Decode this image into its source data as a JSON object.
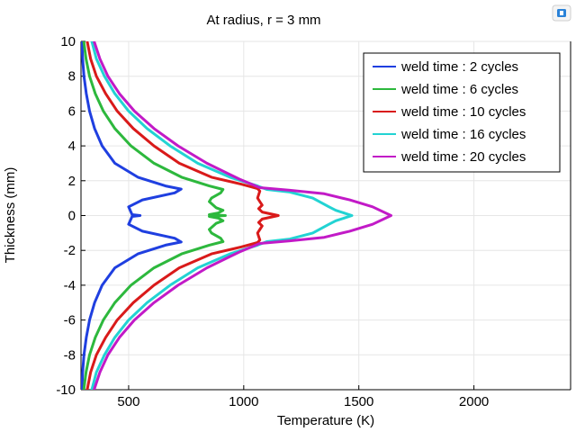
{
  "chart_data": {
    "type": "line",
    "title": "At radius, r = 3 mm",
    "xlabel": "Temperature (K)",
    "ylabel": "Thickness (mm)",
    "xlim": [
      293,
      2420
    ],
    "ylim": [
      -10,
      10
    ],
    "xticks": [
      500,
      1000,
      1500,
      2000
    ],
    "yticks": [
      -10,
      -8,
      -6,
      -4,
      -2,
      0,
      2,
      4,
      6,
      8,
      10
    ],
    "grid": true,
    "legend_position": "top-right",
    "series": [
      {
        "name": "weld time : 2 cycles",
        "color": "#1f3fe0",
        "points": [
          [
            297,
            10
          ],
          [
            300,
            9
          ],
          [
            306,
            8
          ],
          [
            316,
            7
          ],
          [
            330,
            6
          ],
          [
            352,
            5
          ],
          [
            385,
            4
          ],
          [
            440,
            3
          ],
          [
            540,
            2.2
          ],
          [
            660,
            1.7
          ],
          [
            728,
            1.52
          ],
          [
            700,
            1.3
          ],
          [
            560,
            0.9
          ],
          [
            500,
            0.5
          ],
          [
            515,
            0.05
          ],
          [
            550,
            0
          ],
          [
            515,
            -0.05
          ],
          [
            500,
            -0.5
          ],
          [
            560,
            -0.9
          ],
          [
            700,
            -1.3
          ],
          [
            728,
            -1.52
          ],
          [
            660,
            -1.7
          ],
          [
            540,
            -2.2
          ],
          [
            440,
            -3
          ],
          [
            385,
            -4
          ],
          [
            352,
            -5
          ],
          [
            330,
            -6
          ],
          [
            316,
            -7
          ],
          [
            306,
            -8
          ],
          [
            300,
            -9
          ],
          [
            297,
            -10
          ]
        ]
      },
      {
        "name": "weld time : 6 cycles",
        "color": "#2db83d",
        "points": [
          [
            305,
            10
          ],
          [
            315,
            9
          ],
          [
            330,
            8
          ],
          [
            355,
            7
          ],
          [
            390,
            6
          ],
          [
            440,
            5
          ],
          [
            510,
            4
          ],
          [
            610,
            3
          ],
          [
            730,
            2.2
          ],
          [
            850,
            1.7
          ],
          [
            910,
            1.5
          ],
          [
            900,
            1.3
          ],
          [
            860,
            1.0
          ],
          [
            850,
            0.8
          ],
          [
            880,
            0.45
          ],
          [
            910,
            0.3
          ],
          [
            890,
            0.15
          ],
          [
            850,
            0.05
          ],
          [
            920,
            0
          ],
          [
            850,
            -0.05
          ],
          [
            890,
            -0.15
          ],
          [
            910,
            -0.3
          ],
          [
            880,
            -0.45
          ],
          [
            850,
            -0.8
          ],
          [
            860,
            -1.0
          ],
          [
            900,
            -1.3
          ],
          [
            910,
            -1.5
          ],
          [
            850,
            -1.7
          ],
          [
            730,
            -2.2
          ],
          [
            610,
            -3
          ],
          [
            510,
            -4
          ],
          [
            440,
            -5
          ],
          [
            390,
            -6
          ],
          [
            355,
            -7
          ],
          [
            330,
            -8
          ],
          [
            315,
            -9
          ],
          [
            305,
            -10
          ]
        ]
      },
      {
        "name": "weld time : 10 cycles",
        "color": "#d91a1a",
        "points": [
          [
            320,
            10
          ],
          [
            335,
            9
          ],
          [
            360,
            8
          ],
          [
            400,
            7
          ],
          [
            450,
            6
          ],
          [
            520,
            5
          ],
          [
            610,
            4
          ],
          [
            720,
            3
          ],
          [
            860,
            2.2
          ],
          [
            990,
            1.8
          ],
          [
            1060,
            1.55
          ],
          [
            1070,
            1.4
          ],
          [
            1065,
            1.2
          ],
          [
            1060,
            1.0
          ],
          [
            1070,
            0.8
          ],
          [
            1080,
            0.6
          ],
          [
            1065,
            0.4
          ],
          [
            1080,
            0.2
          ],
          [
            1150,
            0
          ],
          [
            1080,
            -0.2
          ],
          [
            1065,
            -0.4
          ],
          [
            1080,
            -0.6
          ],
          [
            1070,
            -0.8
          ],
          [
            1060,
            -1.0
          ],
          [
            1065,
            -1.2
          ],
          [
            1070,
            -1.4
          ],
          [
            1060,
            -1.55
          ],
          [
            990,
            -1.8
          ],
          [
            860,
            -2.2
          ],
          [
            720,
            -3
          ],
          [
            610,
            -4
          ],
          [
            520,
            -5
          ],
          [
            450,
            -6
          ],
          [
            400,
            -7
          ],
          [
            360,
            -8
          ],
          [
            335,
            -9
          ],
          [
            320,
            -10
          ]
        ]
      },
      {
        "name": "weld time : 16 cycles",
        "color": "#22d3d3",
        "points": [
          [
            340,
            10
          ],
          [
            360,
            9
          ],
          [
            395,
            8
          ],
          [
            440,
            7
          ],
          [
            500,
            6
          ],
          [
            580,
            5
          ],
          [
            680,
            4
          ],
          [
            800,
            3
          ],
          [
            940,
            2.2
          ],
          [
            1060,
            1.7
          ],
          [
            1100,
            1.5
          ],
          [
            1200,
            1.35
          ],
          [
            1300,
            1.0
          ],
          [
            1370,
            0.5
          ],
          [
            1400,
            0.3
          ],
          [
            1470,
            0
          ],
          [
            1400,
            -0.3
          ],
          [
            1370,
            -0.5
          ],
          [
            1300,
            -1.0
          ],
          [
            1200,
            -1.35
          ],
          [
            1100,
            -1.5
          ],
          [
            1060,
            -1.7
          ],
          [
            940,
            -2.2
          ],
          [
            800,
            -3
          ],
          [
            680,
            -4
          ],
          [
            580,
            -5
          ],
          [
            500,
            -6
          ],
          [
            440,
            -7
          ],
          [
            395,
            -8
          ],
          [
            360,
            -9
          ],
          [
            340,
            -10
          ]
        ]
      },
      {
        "name": "weld time : 20 cycles",
        "color": "#c21ac7",
        "points": [
          [
            350,
            10
          ],
          [
            375,
            9
          ],
          [
            410,
            8
          ],
          [
            460,
            7
          ],
          [
            525,
            6
          ],
          [
            610,
            5
          ],
          [
            715,
            4
          ],
          [
            840,
            3
          ],
          [
            980,
            2.1
          ],
          [
            1070,
            1.6
          ],
          [
            1200,
            1.45
          ],
          [
            1350,
            1.25
          ],
          [
            1460,
            0.9
          ],
          [
            1560,
            0.5
          ],
          [
            1640,
            0
          ],
          [
            1560,
            -0.5
          ],
          [
            1460,
            -0.9
          ],
          [
            1350,
            -1.25
          ],
          [
            1200,
            -1.45
          ],
          [
            1070,
            -1.6
          ],
          [
            980,
            -2.1
          ],
          [
            840,
            -3
          ],
          [
            715,
            -4
          ],
          [
            610,
            -5
          ],
          [
            525,
            -6
          ],
          [
            460,
            -7
          ],
          [
            410,
            -8
          ],
          [
            375,
            -9
          ],
          [
            350,
            -10
          ]
        ]
      }
    ]
  },
  "icons": {
    "app_icon": "comsol-app-icon"
  }
}
